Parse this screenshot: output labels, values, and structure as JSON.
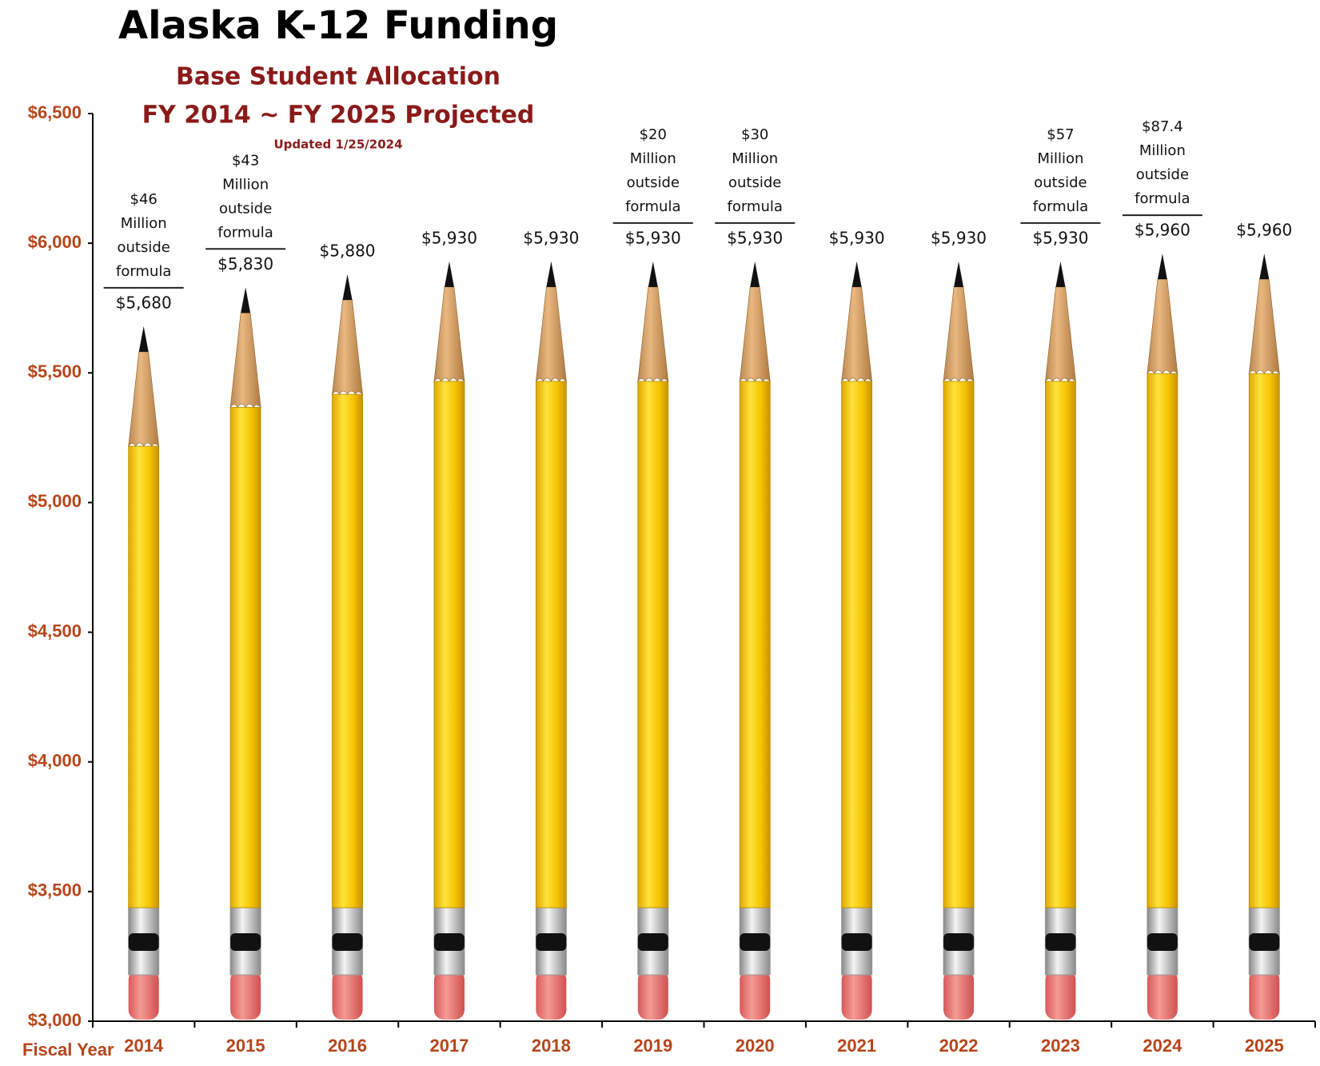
{
  "chart_data": {
    "type": "pencil-bar",
    "title": "Alaska K-12 Funding",
    "subtitle": "Base Student Allocation",
    "subtitle2": "FY 2014 ~ FY 2025 Projected",
    "note": "Updated 1/25/2024",
    "x_label": "Fiscal Year",
    "categories": [
      "2014",
      "2015",
      "2016",
      "2017",
      "2018",
      "2019",
      "2020",
      "2021",
      "2022",
      "2023",
      "2024",
      "2025"
    ],
    "values": [
      5680,
      5830,
      5880,
      5930,
      5930,
      5930,
      5930,
      5930,
      5930,
      5930,
      5960,
      5960
    ],
    "value_labels": [
      "$5,680",
      "$5,830",
      "$5,880",
      "$5,930",
      "$5,930",
      "$5,930",
      "$5,930",
      "$5,930",
      "$5,930",
      "$5,930",
      "$5,960",
      "$5,960"
    ],
    "annotations": [
      [
        "$46",
        "Million",
        "outside",
        "formula"
      ],
      [
        "$43",
        "Million",
        "outside",
        "formula"
      ],
      null,
      null,
      null,
      [
        "$20",
        "Million",
        "outside",
        "formula"
      ],
      [
        "$30",
        "Million",
        "outside",
        "formula"
      ],
      null,
      null,
      [
        "$57",
        "Million",
        "outside",
        "formula"
      ],
      [
        "$87.4",
        "Million",
        "outside",
        "formula"
      ],
      null
    ],
    "color": "#f7c600",
    "ylim": [
      3000,
      6500
    ],
    "yticks": [
      {
        "value": 3000,
        "label": "$3,000"
      },
      {
        "value": 3500,
        "label": "$3,500"
      },
      {
        "value": 4000,
        "label": "$4,000"
      },
      {
        "value": 4500,
        "label": "$4,500"
      },
      {
        "value": 5000,
        "label": "$5,000"
      },
      {
        "value": 5500,
        "label": "$5,500"
      },
      {
        "value": 6000,
        "label": "$6,000"
      },
      {
        "value": 6500,
        "label": "$6,500"
      }
    ],
    "grid": false
  }
}
